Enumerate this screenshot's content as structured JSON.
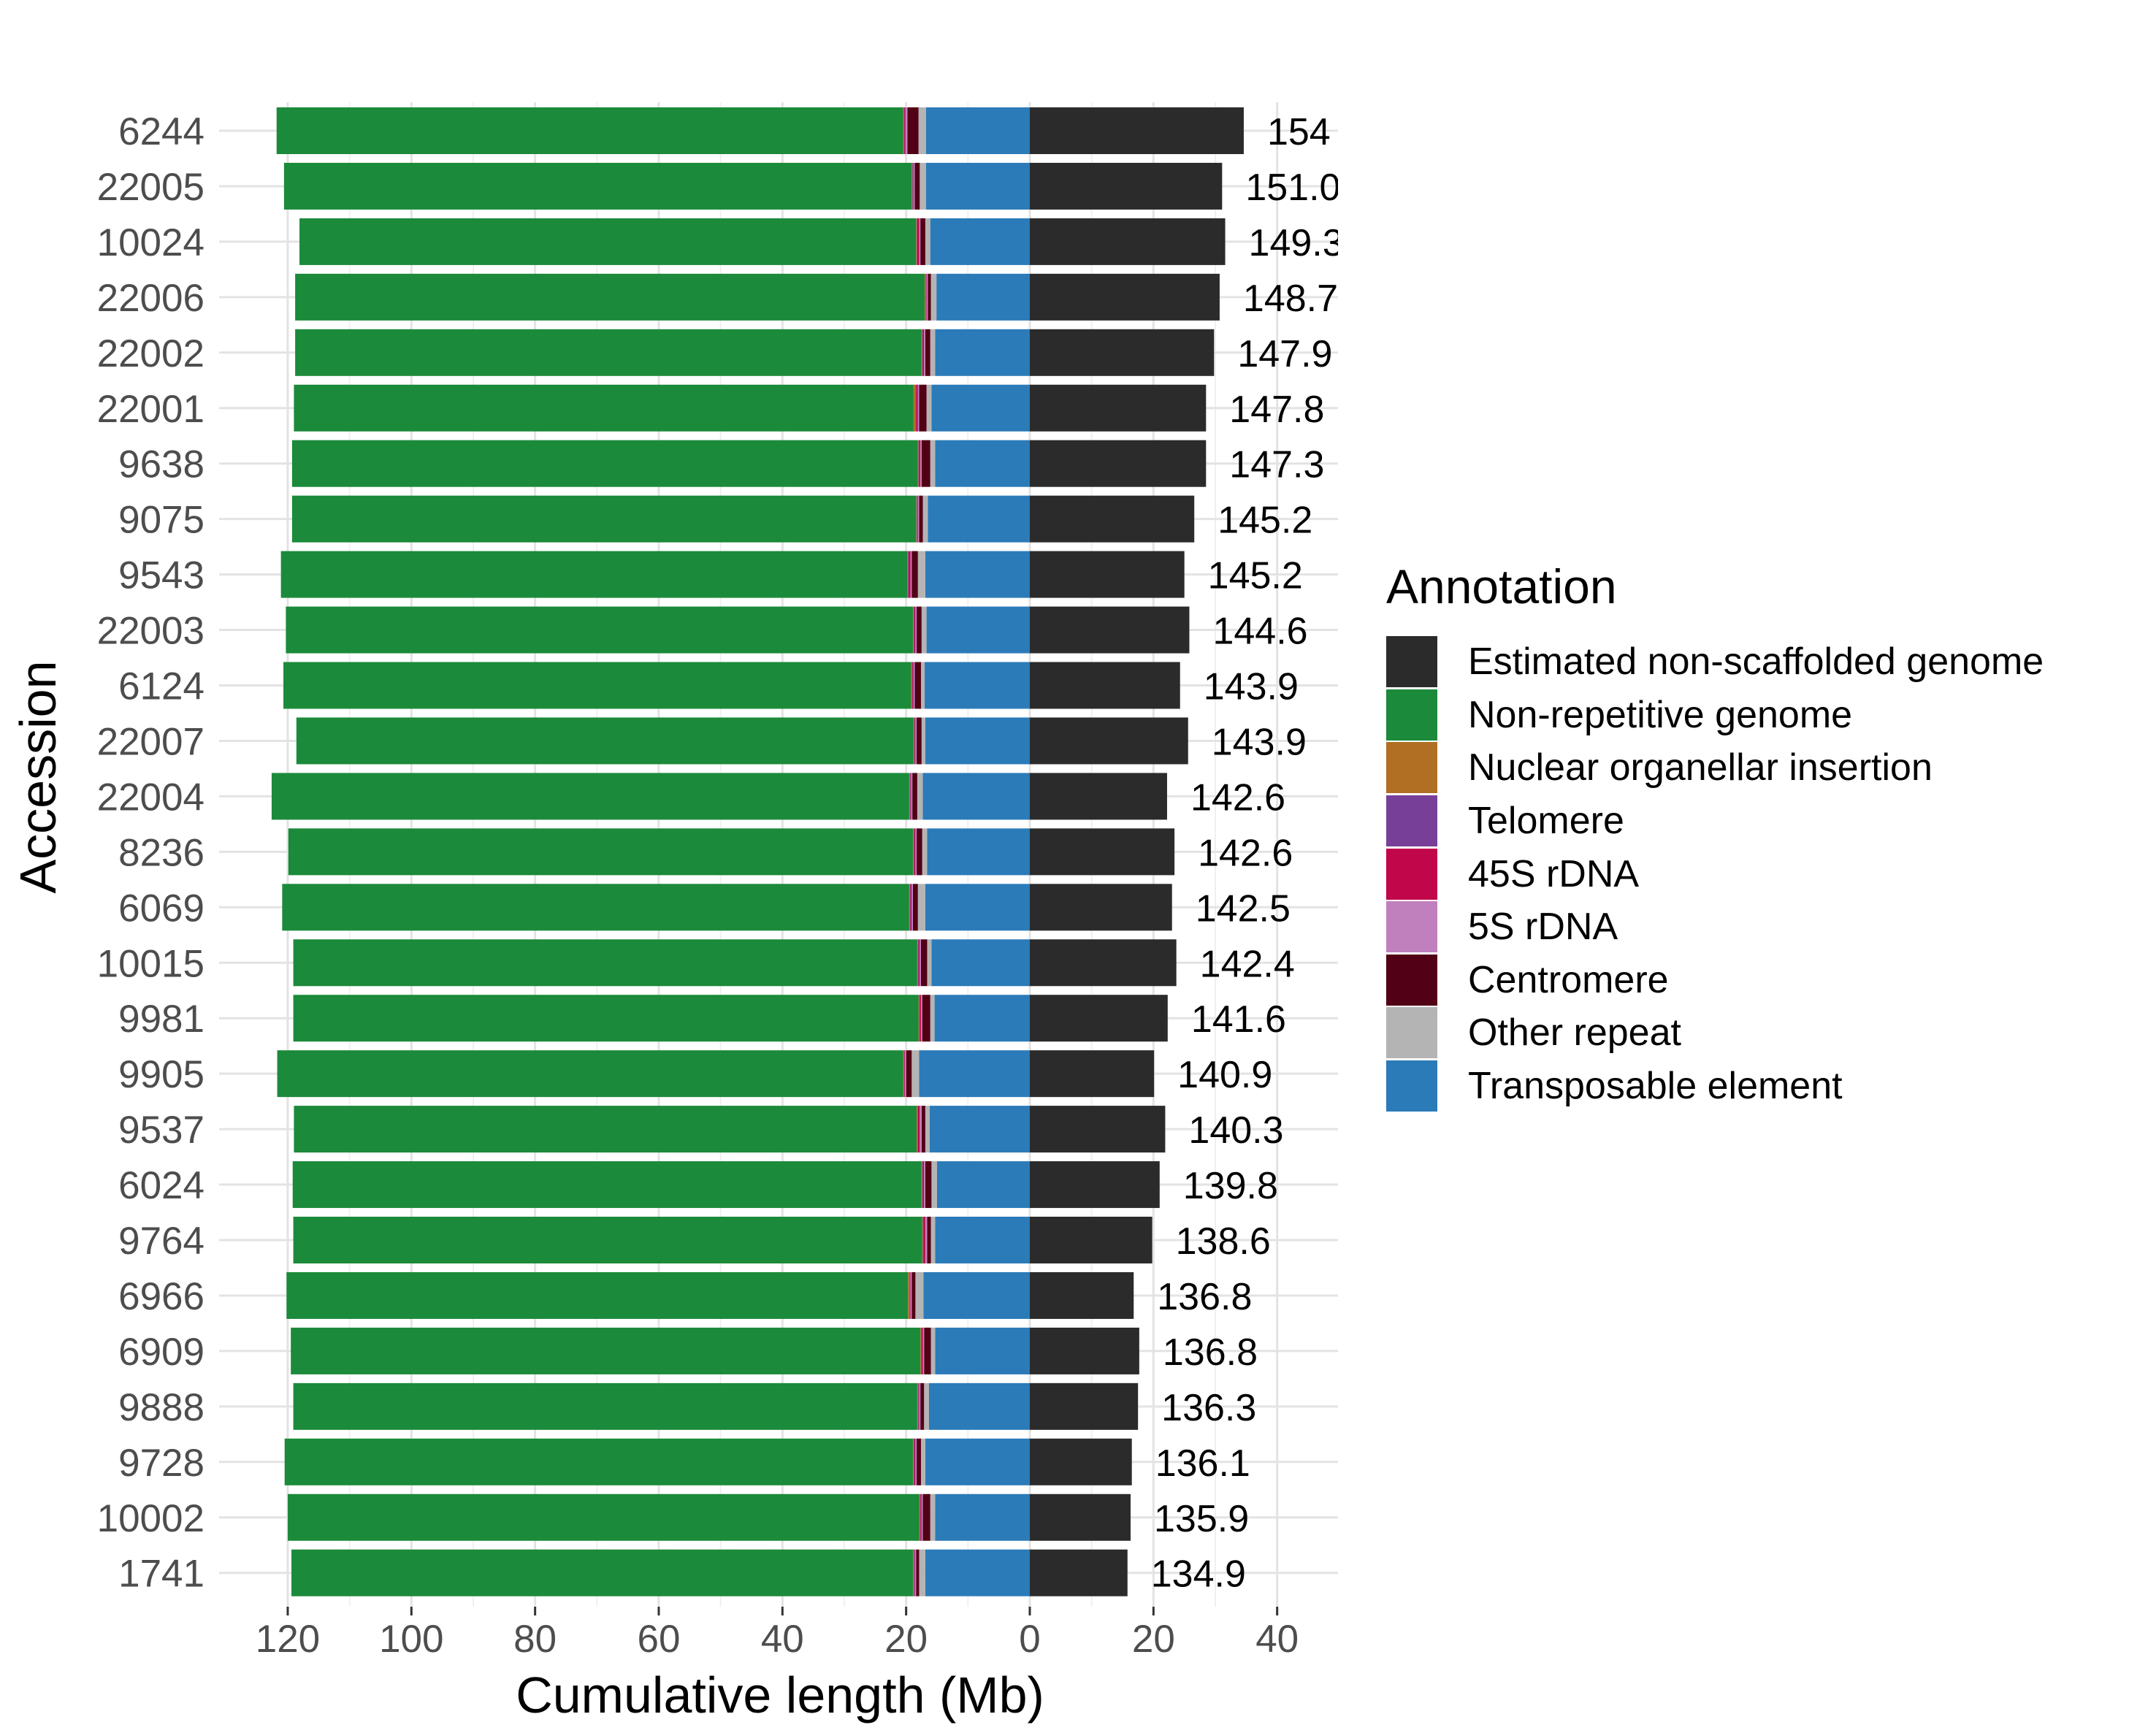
{
  "chart_data": {
    "type": "bar",
    "orientation": "horizontal-diverging",
    "xlabel": "Cumulative length (Mb)",
    "ylabel": "Accession",
    "xlim": [
      -130,
      50
    ],
    "x_ticks": [
      -120,
      -100,
      -80,
      -60,
      -40,
      -20,
      0,
      20,
      40
    ],
    "x_tick_labels": [
      "120",
      "100",
      "80",
      "60",
      "40",
      "20",
      "0",
      "20",
      "40"
    ],
    "grid": true,
    "legend_position": "right",
    "legend_title": "Annotation",
    "categories": [
      "6244",
      "22005",
      "10024",
      "22006",
      "22002",
      "22001",
      "9638",
      "9075",
      "9543",
      "22003",
      "6124",
      "22007",
      "22004",
      "8236",
      "6069",
      "10015",
      "9981",
      "9905",
      "9537",
      "6024",
      "9764",
      "6966",
      "6909",
      "9888",
      "9728",
      "10002",
      "1741"
    ],
    "total_labels": [
      "154",
      "151.0",
      "149.3",
      "148.7",
      "147.9",
      "147.8",
      "147.3",
      "145.2",
      "145.2",
      "144.6",
      "143.9",
      "143.9",
      "142.6",
      "142.6",
      "142.5",
      "142.4",
      "141.6",
      "140.9",
      "140.3",
      "139.8",
      "138.6",
      "136.8",
      "136.8",
      "136.3",
      "136.1",
      "135.9",
      "134.9"
    ],
    "series": [
      {
        "name": "Estimated non-scaffolded genome",
        "color": "#2b2b2b",
        "side": "right",
        "values": [
          34.6,
          31.1,
          31.6,
          30.7,
          29.8,
          28.5,
          28.5,
          26.6,
          25.0,
          25.8,
          24.3,
          25.6,
          22.2,
          23.4,
          23.0,
          23.7,
          22.3,
          20.1,
          21.9,
          21.0,
          19.8,
          16.8,
          17.7,
          17.5,
          16.5,
          16.3,
          15.8
        ]
      },
      {
        "name": "Transposable element",
        "color": "#2b7bb9",
        "side": "left",
        "values": [
          16.8,
          16.8,
          16.1,
          15.1,
          15.3,
          15.9,
          15.3,
          16.5,
          16.9,
          16.7,
          17.0,
          16.9,
          17.3,
          16.6,
          16.9,
          15.9,
          15.4,
          17.9,
          16.2,
          15.0,
          15.3,
          17.2,
          15.3,
          16.3,
          16.9,
          15.3,
          16.9
        ]
      },
      {
        "name": "Other repeat",
        "color": "#b4b4b4",
        "side": "left",
        "values": [
          1.2,
          1.0,
          0.8,
          0.9,
          0.8,
          0.8,
          0.8,
          0.8,
          1.2,
          0.8,
          0.6,
          0.6,
          0.9,
          0.8,
          1.2,
          0.7,
          0.7,
          1.2,
          0.7,
          0.9,
          0.7,
          1.3,
          0.7,
          0.8,
          0.7,
          0.8,
          1.0
        ]
      },
      {
        "name": "Centromere",
        "color": "#520016",
        "side": "left",
        "values": [
          1.8,
          0.8,
          0.8,
          0.5,
          0.8,
          1.2,
          1.4,
          0.6,
          1.0,
          0.8,
          1.0,
          0.8,
          0.8,
          0.9,
          0.8,
          1.0,
          1.3,
          0.9,
          0.6,
          1.0,
          0.6,
          0.6,
          1.1,
          0.6,
          0.7,
          1.2,
          0.5
        ]
      },
      {
        "name": "5S rDNA",
        "color": "#c080bd",
        "side": "left",
        "values": [
          0.3,
          0.2,
          0.2,
          0.2,
          0.2,
          0.2,
          0.2,
          0.2,
          0.2,
          0.2,
          0.2,
          0.2,
          0.2,
          0.2,
          0.2,
          0.2,
          0.2,
          0.2,
          0.3,
          0.2,
          0.3,
          0.2,
          0.2,
          0.2,
          0.2,
          0.2,
          0.2
        ]
      },
      {
        "name": "45S rDNA",
        "color": "#c2064a",
        "side": "left",
        "values": [
          0.2,
          0.1,
          0.3,
          0.1,
          0.2,
          0.3,
          0.2,
          0.1,
          0.3,
          0.2,
          0.2,
          0.1,
          0.1,
          0.2,
          0.2,
          0.2,
          0.2,
          0.1,
          0.3,
          0.2,
          0.3,
          0.1,
          0.2,
          0.1,
          0.2,
          0.2,
          0.1
        ]
      },
      {
        "name": "Telomere",
        "color": "#783f98",
        "side": "left",
        "values": [
          0.1,
          0.1,
          0.1,
          0.1,
          0.1,
          0.1,
          0.1,
          0.1,
          0.1,
          0.1,
          0.1,
          0.1,
          0.1,
          0.1,
          0.1,
          0.1,
          0.1,
          0.1,
          0.1,
          0.1,
          0.1,
          0.1,
          0.1,
          0.1,
          0.1,
          0.1,
          0.1
        ]
      },
      {
        "name": "Nuclear organellar insertion",
        "color": "#b06f22",
        "side": "left",
        "values": [
          0.1,
          0.1,
          0.1,
          0.1,
          0.1,
          0.3,
          0.1,
          0.1,
          0.1,
          0.1,
          0.1,
          0.1,
          0.1,
          0.1,
          0.1,
          0.1,
          0.1,
          0.1,
          0.1,
          0.1,
          0.1,
          0.2,
          0.1,
          0.1,
          0.1,
          0.1,
          0.1
        ]
      },
      {
        "name": "Non-repetitive genome",
        "color": "#1b8a3a",
        "side": "left",
        "values": [
          101.3,
          101.5,
          99.7,
          101.8,
          101.3,
          100.2,
          101.2,
          100.9,
          101.3,
          101.4,
          101.5,
          99.8,
          103.1,
          101.0,
          101.4,
          100.9,
          101.1,
          101.2,
          100.7,
          101.7,
          101.7,
          100.5,
          101.8,
          100.9,
          101.6,
          102.1,
          100.5
        ]
      }
    ],
    "legend_order": [
      "Estimated non-scaffolded genome",
      "Non-repetitive genome",
      "Nuclear organellar insertion",
      "Telomere",
      "45S rDNA",
      "5S rDNA",
      "Centromere",
      "Other repeat",
      "Transposable element"
    ]
  }
}
